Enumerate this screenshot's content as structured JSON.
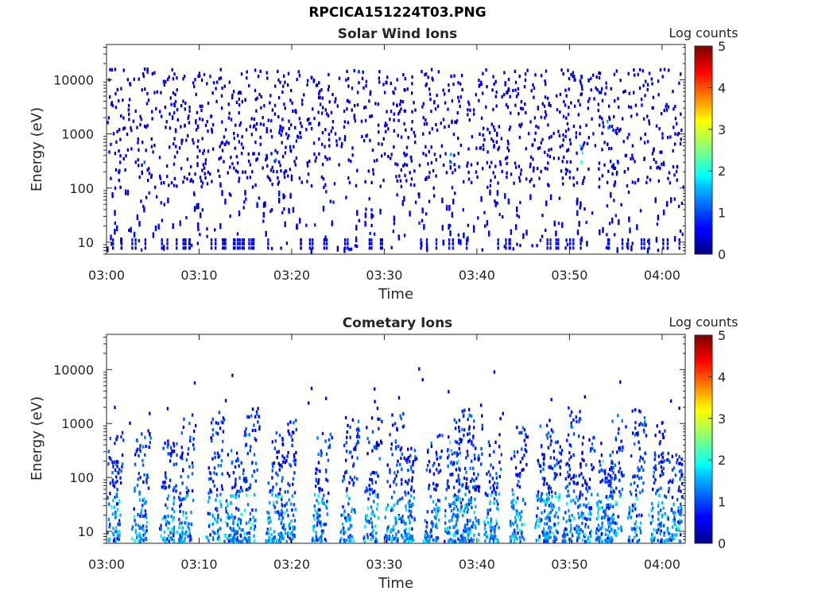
{
  "figure": {
    "title": "RPCICA151224T03.PNG"
  },
  "panels": [
    {
      "title": "Solar Wind Ions",
      "cbar_label": "Log counts"
    },
    {
      "title": "Cometary Ions",
      "cbar_label": "Log counts"
    }
  ],
  "colors": {
    "axis": "#262626",
    "background": "#ffffff"
  },
  "chart_data": [
    {
      "type": "heatmap",
      "title": "Solar Wind Ions",
      "xlabel": "Time",
      "ylabel": "Energy (eV)",
      "x_ticks": [
        "03:00",
        "03:10",
        "03:20",
        "03:30",
        "03:40",
        "03:50",
        "04:00"
      ],
      "x_tick_minutes": [
        0,
        10,
        20,
        30,
        40,
        50,
        60
      ],
      "xlim_minutes": [
        0,
        62.5
      ],
      "y_scale": "log",
      "y_ticks": [
        10,
        100,
        1000,
        10000
      ],
      "y_tick_labels": [
        "10",
        "100",
        "1000",
        "10000"
      ],
      "ylim": [
        6,
        45000
      ],
      "colorbar": {
        "label": "Log counts",
        "range": [
          0,
          5
        ],
        "ticks": [
          0,
          1,
          2,
          3,
          4,
          5
        ],
        "colormap": "jet"
      },
      "seed": 31,
      "cells": [
        {
          "t": 37.1,
          "e": 300,
          "v": 1.2
        },
        {
          "t": 37.1,
          "e": 420,
          "v": 1.4
        },
        {
          "t": 51.2,
          "e": 300,
          "v": 1.9
        },
        {
          "t": 51.3,
          "e": 450,
          "v": 2.1
        },
        {
          "t": 51.1,
          "e": 600,
          "v": 1.8
        },
        {
          "t": 54.0,
          "e": 1700,
          "v": 1.5
        },
        {
          "t": 54.1,
          "e": 1300,
          "v": 1.3
        },
        {
          "t": 18.2,
          "e": 330,
          "v": 1.2
        },
        {
          "t": 4.0,
          "e": 300,
          "v": 1.1
        }
      ]
    },
    {
      "type": "heatmap",
      "title": "Cometary Ions",
      "xlabel": "Time",
      "ylabel": "Energy (eV)",
      "x_ticks": [
        "03:00",
        "03:10",
        "03:20",
        "03:30",
        "03:40",
        "03:50",
        "04:00"
      ],
      "x_tick_minutes": [
        0,
        10,
        20,
        30,
        40,
        50,
        60
      ],
      "xlim_minutes": [
        0,
        62.5
      ],
      "y_scale": "log",
      "y_ticks": [
        10,
        100,
        1000,
        10000
      ],
      "y_tick_labels": [
        "10",
        "100",
        "1000",
        "10000"
      ],
      "ylim": [
        6,
        45000
      ],
      "colorbar": {
        "label": "Log counts",
        "range": [
          0,
          5
        ],
        "ticks": [
          0,
          1,
          2,
          3,
          4,
          5
        ],
        "colormap": "jet"
      },
      "seed": 77,
      "bursts_minutes": [
        0.6,
        3.5,
        6.5,
        8.4,
        11.5,
        13.5,
        15.2,
        18.0,
        19.5,
        23.0,
        26.0,
        28.5,
        30.8,
        32.5,
        35.0,
        37.2,
        38.2,
        39.4,
        41.5,
        44.3,
        47.0,
        48.0,
        50.0,
        51.5,
        53.5,
        54.8,
        57.0,
        59.5,
        61.2
      ],
      "cells": [
        {
          "t": 37.2,
          "e": 300,
          "v": 2.6
        },
        {
          "t": 37.0,
          "e": 450,
          "v": 2.3
        },
        {
          "t": 37.9,
          "e": 200,
          "v": 2.1
        },
        {
          "t": 54.5,
          "e": 60,
          "v": 2.5
        },
        {
          "t": 54.9,
          "e": 35,
          "v": 2.3
        },
        {
          "t": 53.5,
          "e": 200,
          "v": 2.2
        },
        {
          "t": 8.2,
          "e": 20,
          "v": 2.0
        },
        {
          "t": 12.9,
          "e": 18,
          "v": 1.9
        },
        {
          "t": 26.0,
          "e": 16,
          "v": 1.9
        },
        {
          "t": 58.5,
          "e": 20,
          "v": 1.8
        },
        {
          "t": 38.6,
          "e": 30,
          "v": 2.0
        }
      ]
    }
  ]
}
